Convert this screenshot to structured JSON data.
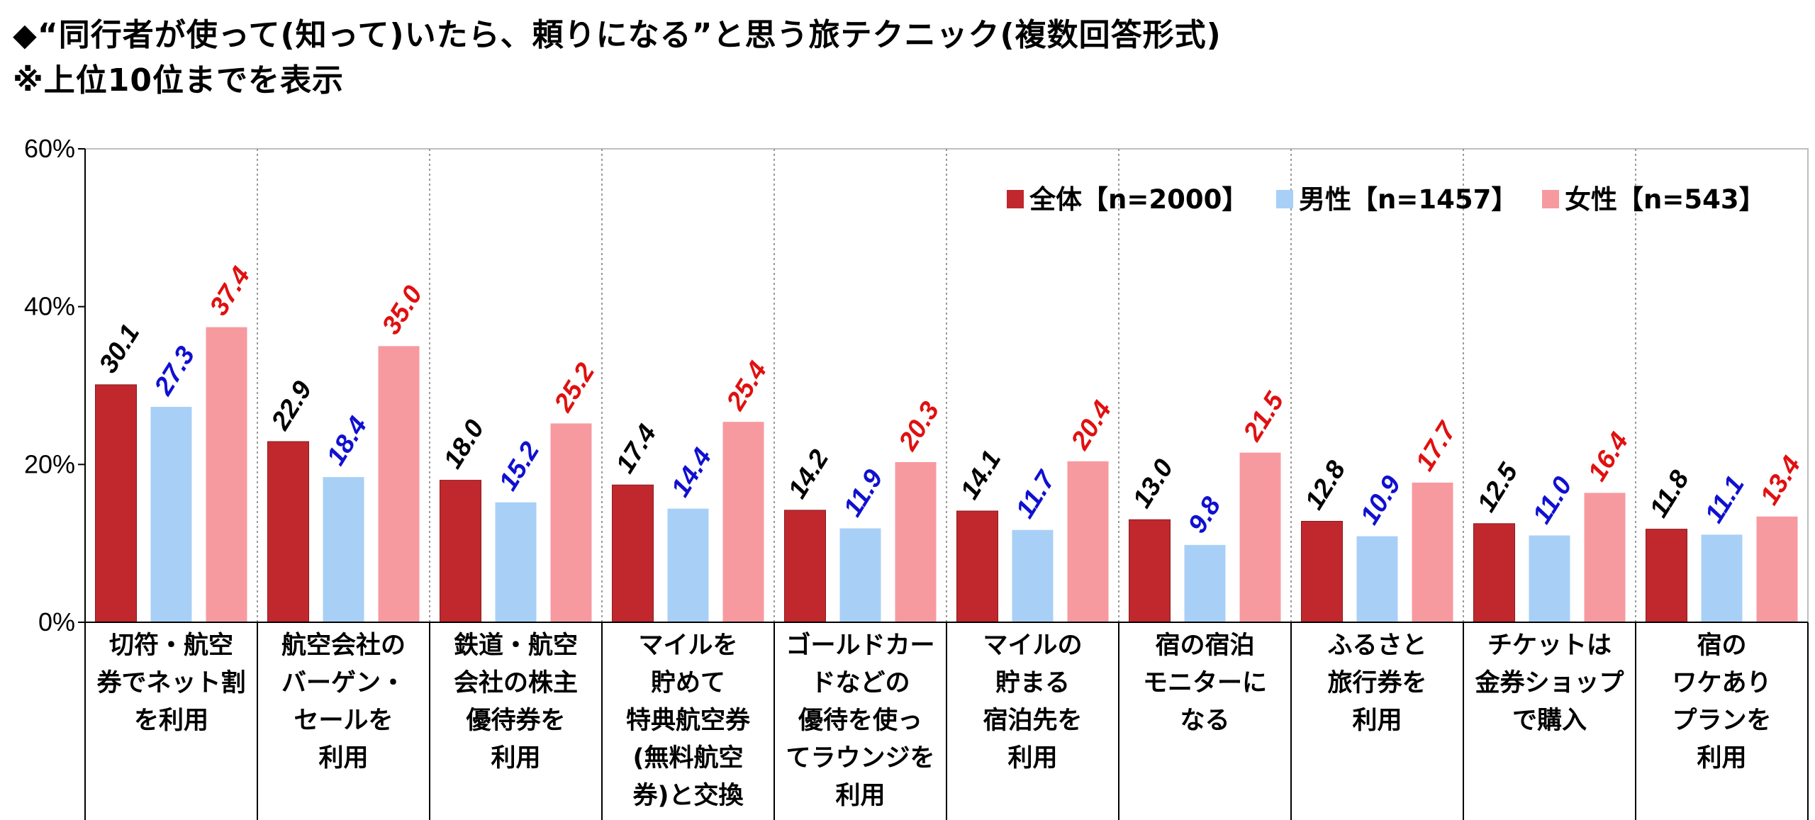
{
  "title": {
    "line1": "◆“同行者が使って(知って)いたら、頼りになる”と思う旅テクニック(複数回答形式)",
    "line2": "※上位10位までを表示"
  },
  "chart_data": {
    "type": "bar",
    "ylim": [
      0,
      60
    ],
    "yticks": [
      "0%",
      "20%",
      "40%",
      "60%"
    ],
    "ytick_values": [
      0,
      20,
      40,
      60
    ],
    "legend_position": "top-right",
    "categories": [
      [
        "切符・航空",
        "券でネット割",
        "を利用"
      ],
      [
        "航空会社の",
        "バーゲン・",
        "セールを",
        "利用"
      ],
      [
        "鉄道・航空",
        "会社の株主",
        "優待券を",
        "利用"
      ],
      [
        "マイルを",
        "貯めて",
        "特典航空券",
        "(無料航空",
        "券)と交換"
      ],
      [
        "ゴールドカー",
        "ドなどの",
        "優待を使っ",
        "てラウンジを",
        "利用"
      ],
      [
        "マイルの",
        "貯まる",
        "宿泊先を",
        "利用"
      ],
      [
        "宿の宿泊",
        "モニターに",
        "なる"
      ],
      [
        "ふるさと",
        "旅行券を",
        "利用"
      ],
      [
        "チケットは",
        "金券ショップ",
        "で購入"
      ],
      [
        "宿の",
        "ワケあり",
        "プランを",
        "利用"
      ]
    ],
    "series": [
      {
        "name": "全体【n=2000】",
        "color": "#c0282d",
        "label_color": "#000000",
        "values": [
          30.1,
          22.9,
          18.0,
          17.4,
          14.2,
          14.1,
          13.0,
          12.8,
          12.5,
          11.8
        ],
        "labels": [
          "30.1",
          "22.9",
          "18.0",
          "17.4",
          "14.2",
          "14.1",
          "13.0",
          "12.8",
          "12.5",
          "11.8"
        ]
      },
      {
        "name": "男性【n=1457】",
        "color": "#a8d0f7",
        "label_color": "#1010d0",
        "values": [
          27.3,
          18.4,
          15.2,
          14.4,
          11.9,
          11.7,
          9.8,
          10.9,
          11.0,
          11.1
        ],
        "labels": [
          "27.3",
          "18.4",
          "15.2",
          "14.4",
          "11.9",
          "11.7",
          "9.8",
          "10.9",
          "11.0",
          "11.1"
        ]
      },
      {
        "name": "女性【n=543】",
        "color": "#f79aa0",
        "label_color": "#e01010",
        "values": [
          37.4,
          35.0,
          25.2,
          25.4,
          20.3,
          20.4,
          21.5,
          17.7,
          16.4,
          13.4
        ],
        "labels": [
          "37.4",
          "35.0",
          "25.2",
          "25.4",
          "20.3",
          "20.4",
          "21.5",
          "17.7",
          "16.4",
          "13.4"
        ]
      }
    ]
  }
}
